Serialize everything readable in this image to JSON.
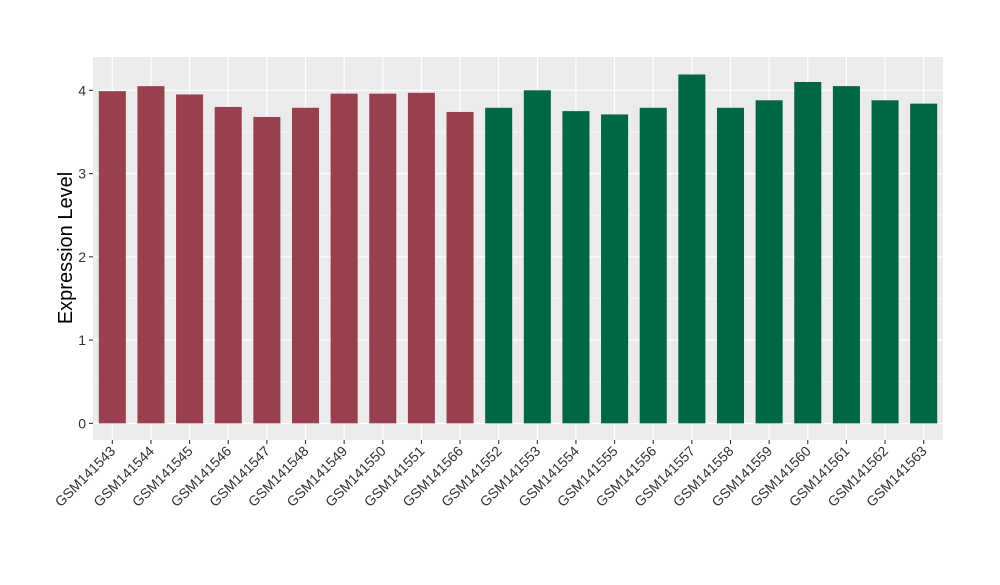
{
  "chart_data": {
    "type": "bar",
    "title": "",
    "xlabel": "",
    "ylabel": "Expression Level",
    "ylim": [
      -0.2,
      4.4
    ],
    "yticks": [
      0,
      1,
      2,
      3,
      4
    ],
    "grid": true,
    "legend": "none",
    "colors": {
      "panel_background": "#ebebeb",
      "grid_major": "#ffffff",
      "group_1": "#99404f",
      "group_2": "#006644",
      "axis_text": "#333333",
      "tick": "#333333"
    },
    "categories": [
      "GSM141543",
      "GSM141544",
      "GSM141545",
      "GSM141546",
      "GSM141547",
      "GSM141548",
      "GSM141549",
      "GSM141550",
      "GSM141551",
      "GSM141566",
      "GSM141552",
      "GSM141553",
      "GSM141554",
      "GSM141555",
      "GSM141556",
      "GSM141557",
      "GSM141558",
      "GSM141559",
      "GSM141560",
      "GSM141561",
      "GSM141562",
      "GSM141563"
    ],
    "values": [
      3.99,
      4.05,
      3.95,
      3.8,
      3.68,
      3.79,
      3.96,
      3.96,
      3.97,
      3.74,
      3.79,
      4.0,
      3.75,
      3.71,
      3.79,
      4.19,
      3.79,
      3.88,
      4.1,
      4.05,
      3.88,
      3.84
    ],
    "groups": [
      1,
      1,
      1,
      1,
      1,
      1,
      1,
      1,
      1,
      1,
      2,
      2,
      2,
      2,
      2,
      2,
      2,
      2,
      2,
      2,
      2,
      2
    ]
  }
}
